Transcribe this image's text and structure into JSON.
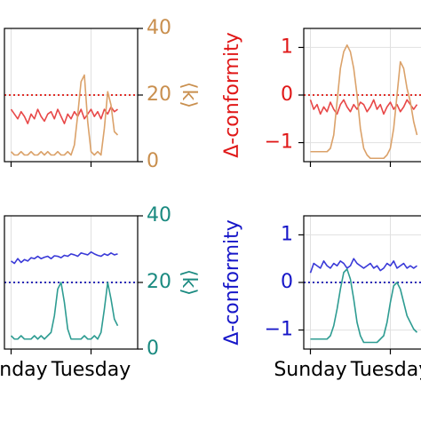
{
  "chart_data": [
    {
      "type": "line",
      "x": [
        0,
        2,
        4,
        6,
        8,
        10,
        12,
        14,
        16,
        18,
        20,
        22,
        24,
        26,
        28,
        30,
        32,
        34,
        36,
        38,
        40,
        42,
        44,
        46,
        48,
        50,
        52,
        54,
        56,
        58,
        60,
        62,
        64
      ],
      "xlim": [
        -4,
        76
      ],
      "xticks": [
        0,
        48
      ],
      "show_xtick_labels": false,
      "ylim": [
        -1.4,
        1.4
      ],
      "y2lim": [
        0,
        40
      ],
      "y2ticks": [
        0,
        20,
        40
      ],
      "y2label": "⟨k⟩",
      "y2_color": "#c98f4e",
      "grid": true,
      "reference_line": {
        "value": 0,
        "color": "#e0302a"
      },
      "series": [
        {
          "name": "Δ-conformity",
          "color": "#e84848",
          "axis": "y",
          "values": [
            -0.3,
            -0.4,
            -0.5,
            -0.35,
            -0.45,
            -0.6,
            -0.4,
            -0.5,
            -0.3,
            -0.45,
            -0.55,
            -0.4,
            -0.35,
            -0.5,
            -0.3,
            -0.45,
            -0.6,
            -0.4,
            -0.5,
            -0.35,
            -0.45,
            -0.3,
            -0.5,
            -0.4,
            -0.3,
            -0.45,
            -0.35,
            -0.5,
            -0.3,
            -0.4,
            -0.25,
            -0.35,
            -0.3
          ]
        },
        {
          "name": "⟨k⟩",
          "color": "#dba26a",
          "axis": "y2",
          "values": [
            3,
            2,
            2,
            3,
            2,
            2,
            3,
            2,
            2,
            3,
            2,
            3,
            2,
            2,
            3,
            2,
            2,
            3,
            2,
            5,
            14,
            24,
            26,
            12,
            3,
            2,
            3,
            2,
            10,
            21,
            17,
            9,
            8
          ]
        }
      ]
    },
    {
      "type": "line",
      "x": [
        0,
        2,
        4,
        6,
        8,
        10,
        12,
        14,
        16,
        18,
        20,
        22,
        24,
        26,
        28,
        30,
        32,
        34,
        36,
        38,
        40,
        42,
        44,
        46,
        48,
        50,
        52,
        54,
        56,
        58,
        60,
        62,
        64
      ],
      "xlim": [
        -4,
        76
      ],
      "xticks": [
        0,
        48
      ],
      "show_xtick_labels": false,
      "ylim": [
        -1.4,
        1.4
      ],
      "yticks": [
        {
          "value": -1,
          "label": "−1"
        },
        0,
        1
      ],
      "ylabel": "Δ-conformity",
      "y_color": "#e01818",
      "y2lim": [
        0,
        40
      ],
      "grid": true,
      "reference_line": {
        "value": 0,
        "color": "#e0302a"
      },
      "series": [
        {
          "name": "Δ-conformity",
          "color": "#e84848",
          "axis": "y",
          "values": [
            -0.1,
            -0.3,
            -0.2,
            -0.4,
            -0.25,
            -0.35,
            -0.15,
            -0.3,
            -0.4,
            -0.2,
            -0.1,
            -0.25,
            -0.35,
            -0.2,
            -0.3,
            -0.15,
            -0.2,
            -0.35,
            -0.25,
            -0.1,
            -0.3,
            -0.2,
            -0.4,
            -0.25,
            -0.15,
            -0.3,
            -0.2,
            -0.35,
            -0.25,
            -0.1,
            -0.2,
            -0.3,
            -0.2
          ]
        },
        {
          "name": "⟨k⟩",
          "color": "#dba26a",
          "axis": "y2",
          "values": [
            3,
            3,
            3,
            3,
            3,
            3,
            4,
            8,
            18,
            28,
            33,
            35,
            33,
            28,
            20,
            10,
            4,
            2,
            1,
            1,
            1,
            1,
            1,
            2,
            4,
            10,
            20,
            30,
            28,
            22,
            18,
            12,
            8
          ]
        }
      ]
    },
    {
      "type": "line",
      "x": [
        0,
        2,
        4,
        6,
        8,
        10,
        12,
        14,
        16,
        18,
        20,
        22,
        24,
        26,
        28,
        30,
        32,
        34,
        36,
        38,
        40,
        42,
        44,
        46,
        48,
        50,
        52,
        54,
        56,
        58,
        60,
        62,
        64
      ],
      "xlim": [
        -4,
        76
      ],
      "xticks": [
        {
          "value": 0,
          "label": "Sunday"
        },
        {
          "value": 48,
          "label": "Tuesday"
        }
      ],
      "show_xtick_labels": true,
      "ylim": [
        -1.4,
        1.4
      ],
      "y2lim": [
        0,
        40
      ],
      "y2ticks": [
        0,
        20,
        40
      ],
      "y2label": "⟨k⟩",
      "y2_color": "#1a8a80",
      "grid": true,
      "reference_line": {
        "value": 0,
        "color": "#2a2ab8"
      },
      "series": [
        {
          "name": "Δ-conformity",
          "color": "#3a3ad8",
          "axis": "y",
          "values": [
            0.45,
            0.4,
            0.5,
            0.42,
            0.48,
            0.45,
            0.52,
            0.5,
            0.55,
            0.5,
            0.53,
            0.55,
            0.5,
            0.56,
            0.55,
            0.52,
            0.57,
            0.55,
            0.6,
            0.58,
            0.55,
            0.62,
            0.6,
            0.58,
            0.64,
            0.6,
            0.57,
            0.55,
            0.6,
            0.57,
            0.62,
            0.58,
            0.6
          ]
        },
        {
          "name": "⟨k⟩",
          "color": "#2e9c92",
          "axis": "y2",
          "values": [
            4,
            3,
            3,
            4,
            3,
            3,
            3,
            4,
            3,
            4,
            3,
            4,
            5,
            10,
            18,
            20,
            14,
            6,
            3,
            3,
            3,
            3,
            4,
            3,
            3,
            4,
            3,
            5,
            12,
            20,
            15,
            9,
            7
          ]
        }
      ]
    },
    {
      "type": "line",
      "x": [
        0,
        2,
        4,
        6,
        8,
        10,
        12,
        14,
        16,
        18,
        20,
        22,
        24,
        26,
        28,
        30,
        32,
        34,
        36,
        38,
        40,
        42,
        44,
        46,
        48,
        50,
        52,
        54,
        56,
        58,
        60,
        62,
        64
      ],
      "xlim": [
        -4,
        76
      ],
      "xticks": [
        {
          "value": 0,
          "label": "Sunday"
        },
        {
          "value": 48,
          "label": "Tuesday"
        }
      ],
      "show_xtick_labels": true,
      "ylim": [
        -1.4,
        1.4
      ],
      "yticks": [
        {
          "value": -1,
          "label": "−1"
        },
        0,
        1
      ],
      "ylabel": "Δ-conformity",
      "y_color": "#1616c8",
      "y2lim": [
        0,
        40
      ],
      "grid": true,
      "reference_line": {
        "value": 0,
        "color": "#2a2ab8"
      },
      "series": [
        {
          "name": "Δ-conformity",
          "color": "#3a3ad8",
          "axis": "y",
          "values": [
            0.2,
            0.4,
            0.35,
            0.3,
            0.45,
            0.35,
            0.3,
            0.4,
            0.35,
            0.45,
            0.4,
            0.3,
            0.35,
            0.5,
            0.4,
            0.35,
            0.3,
            0.35,
            0.4,
            0.3,
            0.35,
            0.25,
            0.3,
            0.4,
            0.35,
            0.45,
            0.3,
            0.35,
            0.4,
            0.3,
            0.35,
            0.3,
            0.35
          ]
        },
        {
          "name": "⟨k⟩",
          "color": "#2e9c92",
          "axis": "y2",
          "values": [
            3,
            3,
            3,
            3,
            3,
            3,
            4,
            7,
            12,
            18,
            23,
            24,
            21,
            15,
            8,
            4,
            2,
            2,
            2,
            2,
            2,
            3,
            4,
            8,
            14,
            19,
            20,
            18,
            14,
            10,
            8,
            6,
            5
          ]
        }
      ]
    }
  ]
}
